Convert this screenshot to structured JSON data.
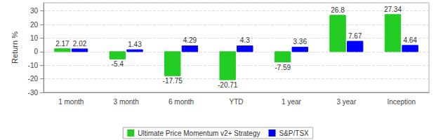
{
  "chart_data": {
    "type": "bar",
    "y_label": "Return %",
    "categories": [
      "1 month",
      "3 month",
      "6 month",
      "YTD",
      "1 year",
      "3 year",
      "Inception"
    ],
    "series": [
      {
        "name": "Ultimate Price Momentum v2+ Strategy",
        "color": "#22cc22",
        "values": [
          2.17,
          -5.4,
          -17.75,
          -20.71,
          -7.59,
          26.8,
          27.34
        ]
      },
      {
        "name": "S&P/TSX",
        "color": "#0000ff",
        "values": [
          2.02,
          1.43,
          4.29,
          4.3,
          3.36,
          7.67,
          4.64
        ]
      }
    ],
    "ylim": [
      -30,
      36
    ],
    "yticks": [
      -30,
      -20,
      -10,
      0,
      10,
      20,
      30
    ],
    "grid": true,
    "legend": "bottom",
    "data_labels": true
  }
}
